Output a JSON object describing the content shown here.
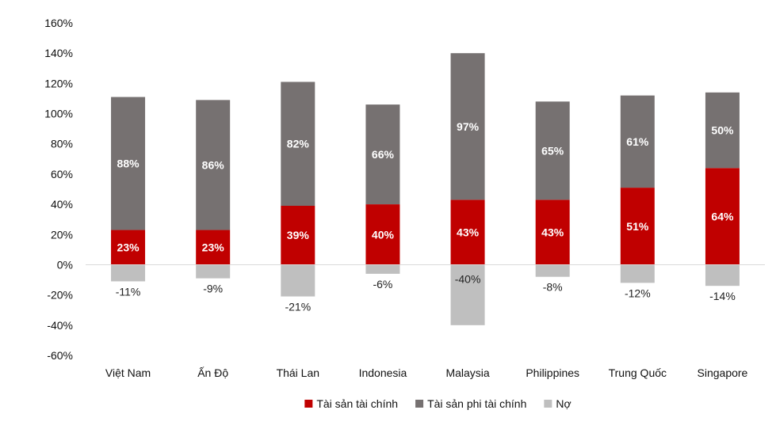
{
  "chart_data": {
    "type": "bar",
    "stacked": true,
    "categories": [
      "Việt Nam",
      "Ấn Độ",
      "Thái Lan",
      "Indonesia",
      "Malaysia",
      "Philippines",
      "Trung Quốc",
      "Singapore"
    ],
    "series": [
      {
        "name": "Tài sản tài chính",
        "color": "#c00000",
        "values": [
          23,
          23,
          39,
          40,
          43,
          43,
          51,
          64
        ]
      },
      {
        "name": "Tài sản phi tài chính",
        "color": "#767171",
        "values": [
          88,
          86,
          82,
          66,
          97,
          65,
          61,
          50
        ]
      },
      {
        "name": "Nợ",
        "color": "#bfbfbf",
        "values": [
          -11,
          -9,
          -21,
          -6,
          -40,
          -8,
          -12,
          -14
        ]
      }
    ],
    "ylim": [
      -60,
      160
    ],
    "yticks": [
      -60,
      -40,
      -20,
      0,
      20,
      40,
      60,
      80,
      100,
      120,
      140,
      160
    ],
    "ytick_format": "percent",
    "grid": false,
    "legend_position": "bottom"
  }
}
